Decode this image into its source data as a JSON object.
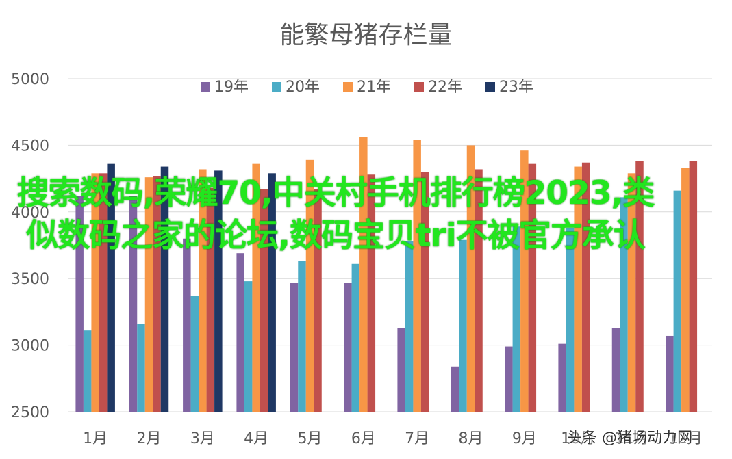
{
  "chart_data": {
    "type": "bar",
    "title": "能繁母猪存栏量",
    "categories": [
      "1月",
      "2月",
      "3月",
      "4月",
      "5月",
      "6月",
      "7月",
      "8月",
      "9月",
      "10月",
      "11月",
      "12月"
    ],
    "ylim": [
      2500,
      5000
    ],
    "yticks": [
      2500,
      3000,
      3500,
      4000,
      4500,
      5000
    ],
    "grid": true,
    "legend_position": "top",
    "series": [
      {
        "name": "19年",
        "color": "#8064a2",
        "values": [
          4120,
          4120,
          3800,
          3690,
          3470,
          3470,
          3130,
          2840,
          2990,
          3010,
          3130,
          3070
        ]
      },
      {
        "name": "20年",
        "color": "#4bacc6",
        "values": [
          3110,
          3160,
          3370,
          3480,
          3630,
          3610,
          3780,
          3790,
          3890,
          3880,
          4110,
          4160
        ]
      },
      {
        "name": "21年",
        "color": "#f79646",
        "values": [
          4290,
          4260,
          4320,
          4360,
          4390,
          4560,
          4540,
          4500,
          4460,
          4340,
          4290,
          4330
        ]
      },
      {
        "name": "22年",
        "color": "#c0504d",
        "values": [
          4290,
          4270,
          4180,
          4170,
          4170,
          4280,
          4300,
          4320,
          4360,
          4370,
          4380,
          4380
        ]
      },
      {
        "name": "23年",
        "color": "#1f3864",
        "values": [
          4360,
          4340,
          4310,
          4290,
          null,
          null,
          null,
          null,
          null,
          null,
          null,
          null
        ]
      }
    ]
  },
  "overlay_text": "搜索数码,荣耀70,中关村手机排行榜2023,类似数码之家的论坛,数码宝贝tri不被官方承认",
  "watermark": "头条 @猪场动力网"
}
